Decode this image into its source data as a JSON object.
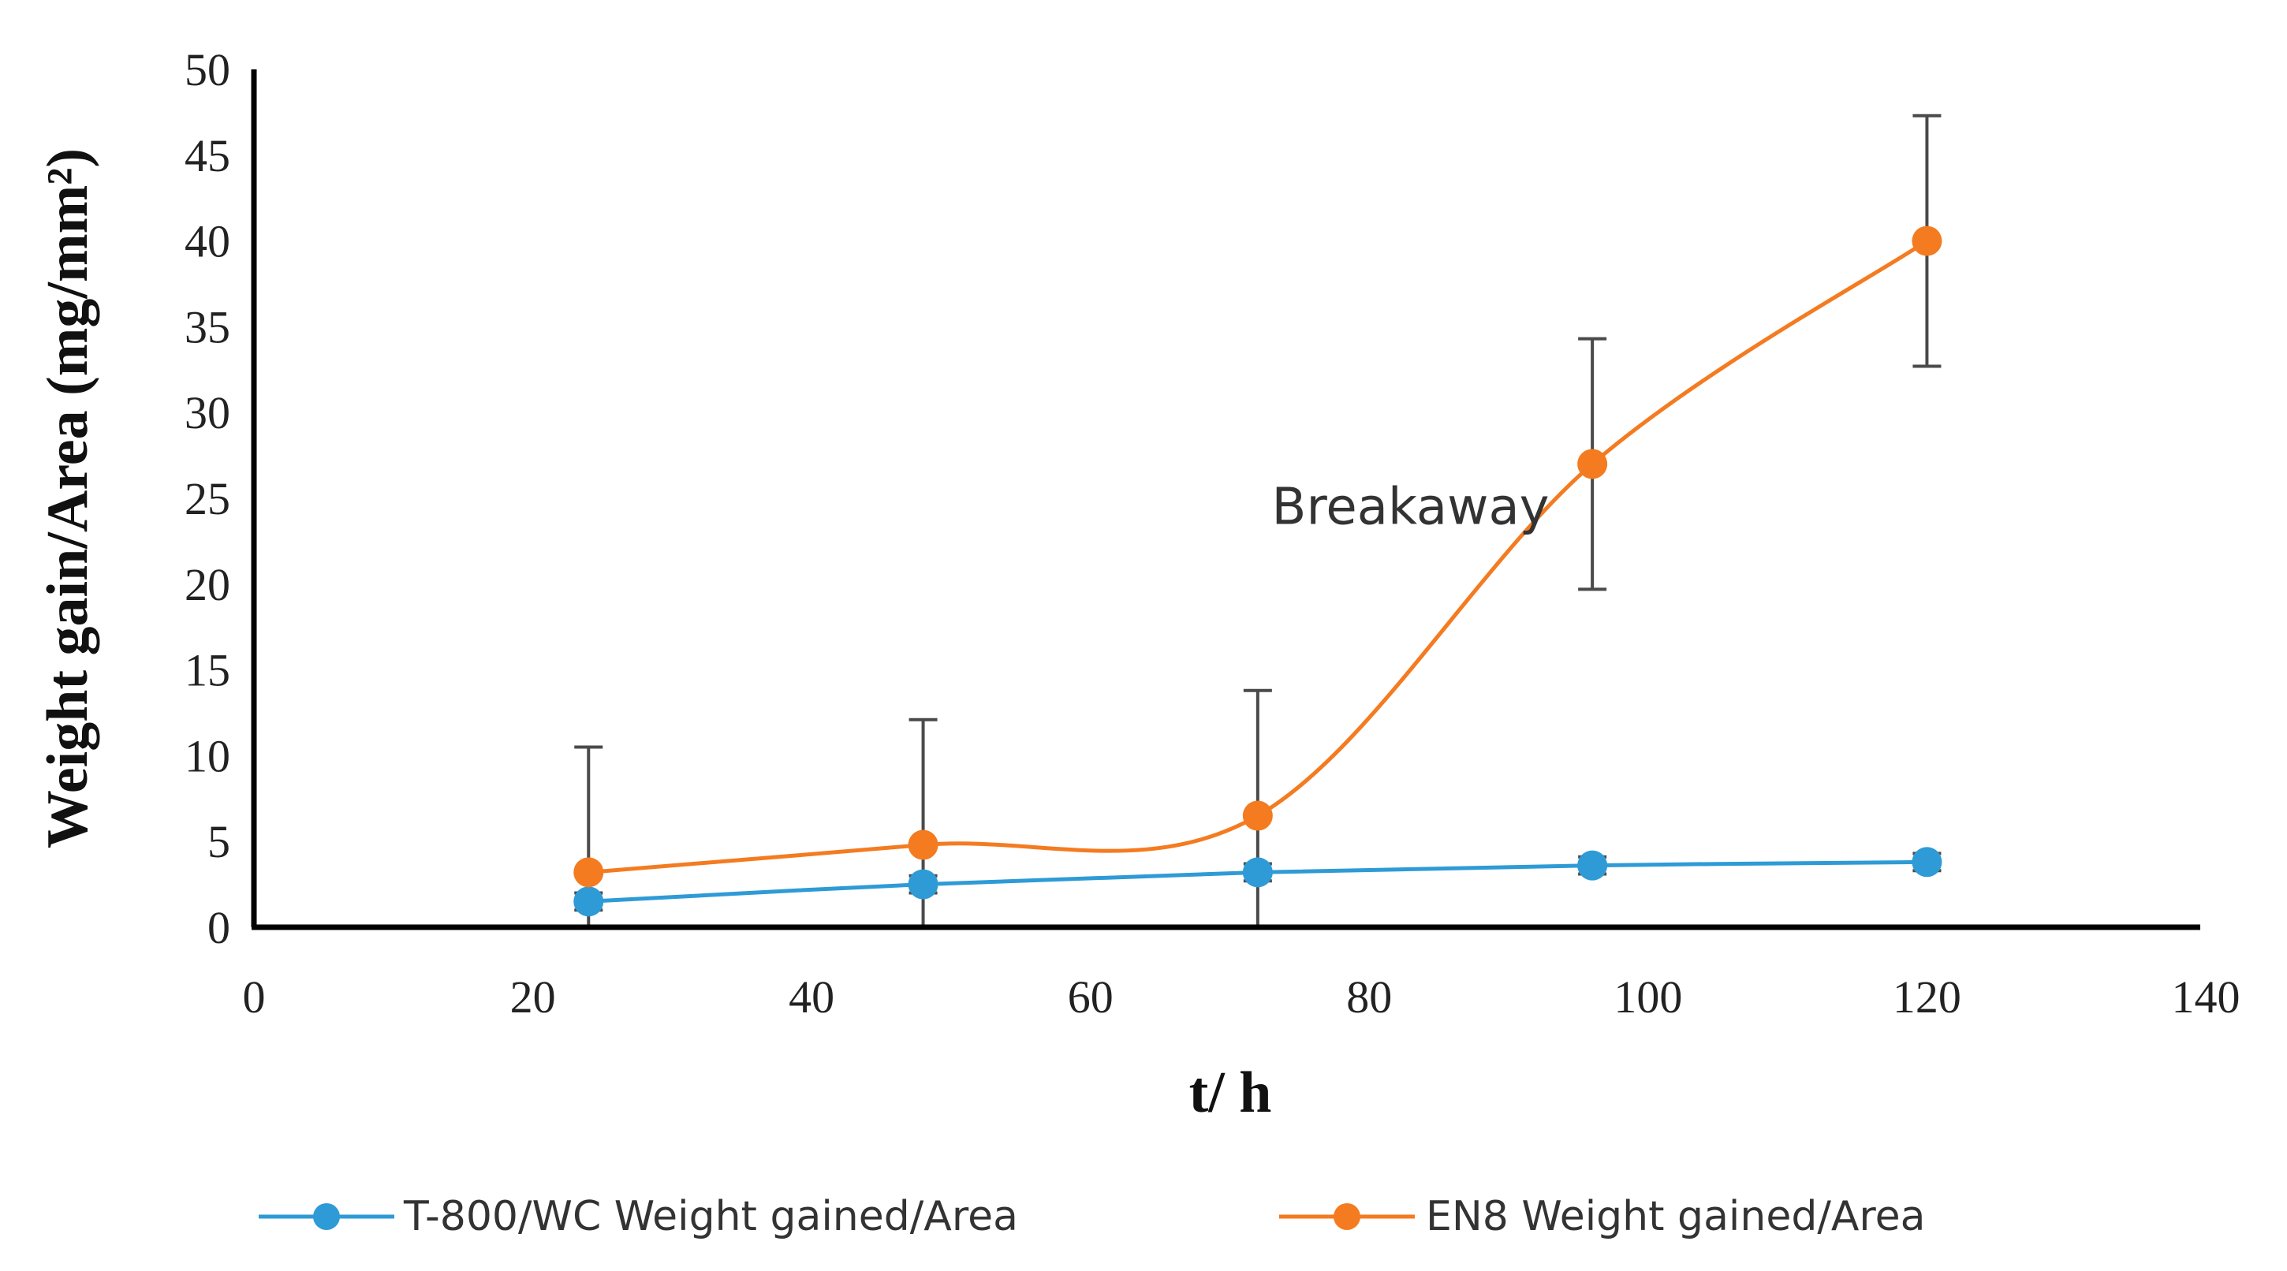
{
  "chart_data": {
    "type": "line",
    "title": "",
    "xlabel": "t/ h",
    "ylabel": "Weight gain/Area (mg/mm²)",
    "xlim": [
      0,
      140
    ],
    "ylim": [
      0,
      50
    ],
    "x_ticks": [
      "0",
      "20",
      "40",
      "60",
      "80",
      "100",
      "120",
      "140"
    ],
    "y_ticks": [
      "0",
      "5",
      "10",
      "15",
      "20",
      "25",
      "30",
      "35",
      "40",
      "45",
      "50"
    ],
    "grid": false,
    "legend_position": "bottom",
    "annotation": {
      "text": "Breakaway",
      "x": 73,
      "y": 23.5
    },
    "series": [
      {
        "name": "T-800/WC Weight gained/Area",
        "color": "#2E9BD6",
        "x": [
          24,
          48,
          72,
          96,
          120
        ],
        "values": [
          1.5,
          2.5,
          3.2,
          3.6,
          3.8
        ],
        "error": [
          0.5,
          0.5,
          0.5,
          0.5,
          0.5
        ]
      },
      {
        "name": "EN8 Weight gained/Area",
        "color": "#F47B20",
        "x": [
          24,
          48,
          72,
          96,
          120
        ],
        "values": [
          3.2,
          4.8,
          6.5,
          27,
          40
        ],
        "error": [
          7.3,
          7.3,
          7.3,
          7.3,
          7.3
        ]
      }
    ]
  }
}
